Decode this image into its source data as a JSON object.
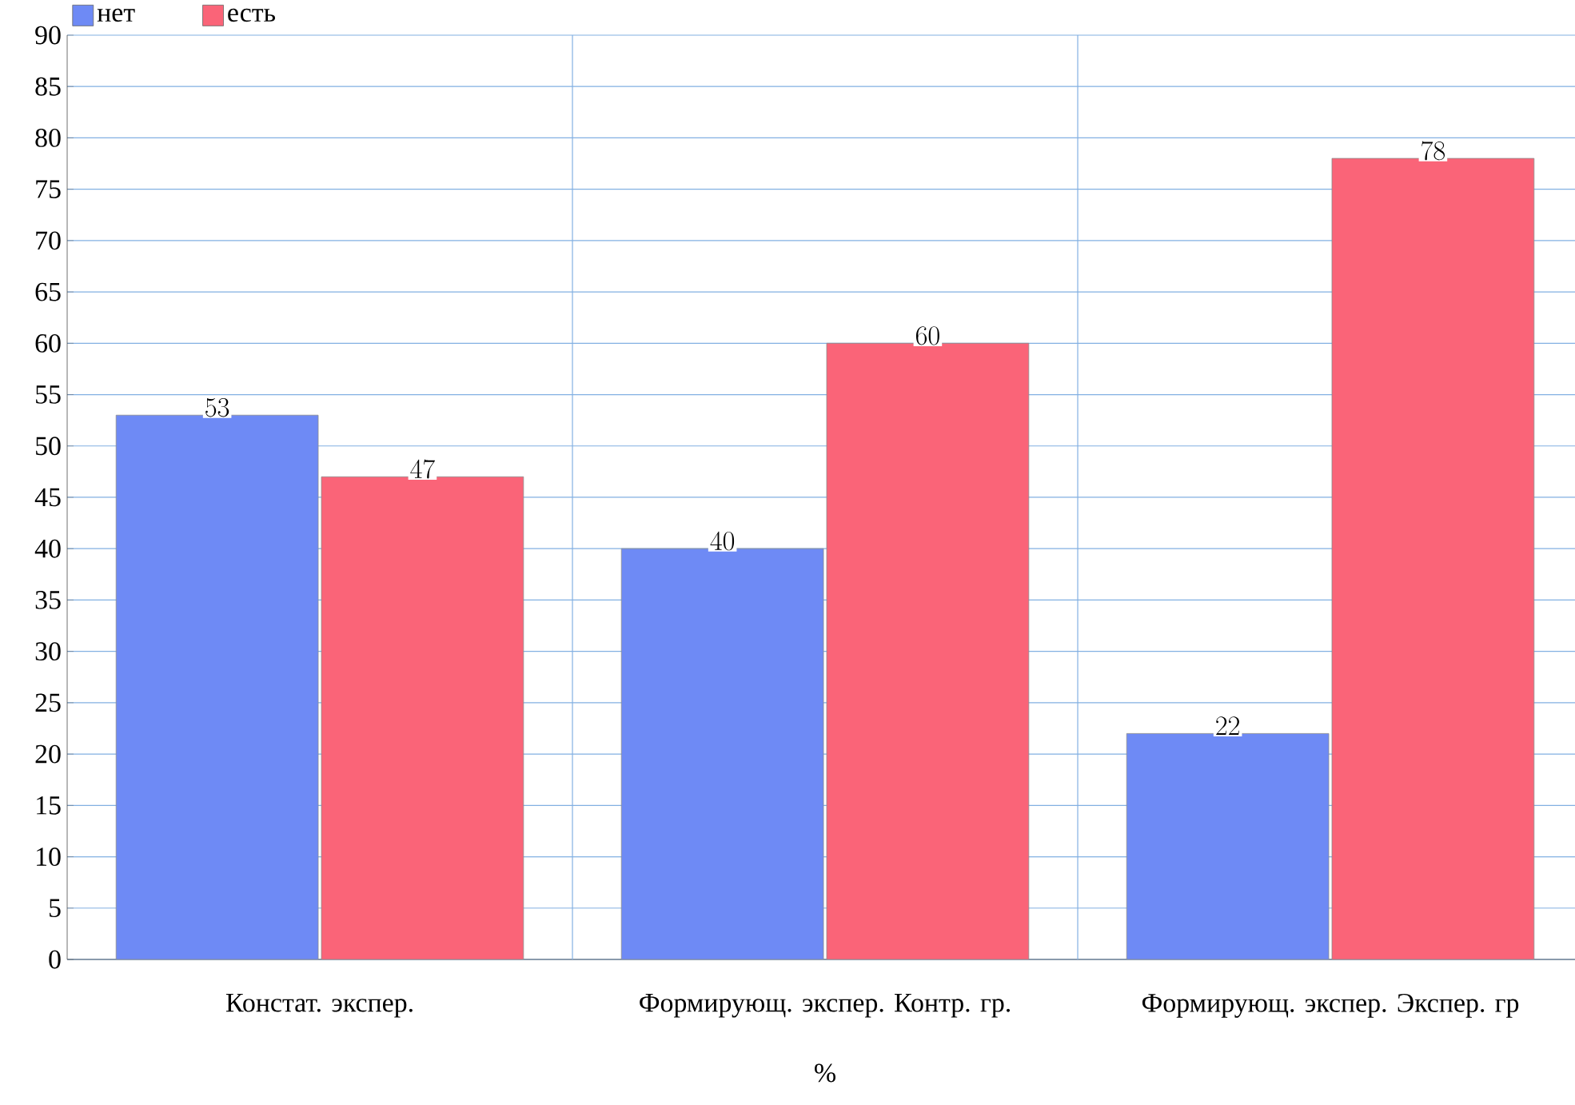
{
  "chart_data": {
    "type": "bar",
    "xlabel": "%",
    "categories": [
      "Констат. экспер.",
      "Формирующ. экспер. Контр. гр.",
      "Формирующ. экспер. Экспер. гр"
    ],
    "series": [
      {
        "name": "нет",
        "color": "#6e8af5",
        "values": [
          53,
          40,
          22
        ]
      },
      {
        "name": "есть",
        "color": "#fa6478",
        "values": [
          47,
          60,
          78
        ]
      }
    ],
    "ylim": [
      0,
      90
    ],
    "yticks": [
      0,
      5,
      10,
      15,
      20,
      25,
      30,
      35,
      40,
      45,
      50,
      55,
      60,
      65,
      70,
      75,
      80,
      85,
      90
    ],
    "grid": true,
    "legend": "top left",
    "data_labels": true
  }
}
